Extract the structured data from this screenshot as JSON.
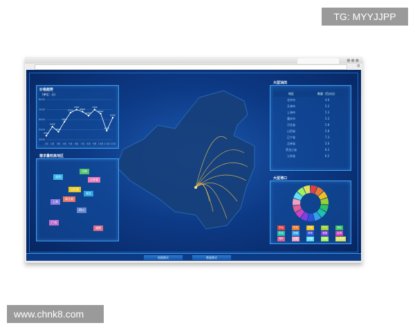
{
  "watermarks": {
    "top": "TG: MYYJJPP",
    "bottom": "www.chnk8.com"
  },
  "colors": {
    "background": "#0d3a86",
    "panel_border": "#3fa0ee",
    "line": "#ffffff",
    "flow_lines": "#f2c14e"
  },
  "panels": {
    "trend": {
      "title": "价格趋势",
      "unit": "(单位：元)"
    },
    "demand": {
      "title": "需求量较高地区",
      "tags": [
        {
          "label": "北京",
          "color": "#3fb8e8"
        },
        {
          "label": "河南",
          "color": "#4fbf6a"
        },
        {
          "label": "江苏省",
          "color": "#e87ab8"
        },
        {
          "label": "山东省",
          "color": "#e8c820"
        },
        {
          "label": "湖北",
          "color": "#2aa4e0"
        },
        {
          "label": "浙江省",
          "color": "#e8786a"
        },
        {
          "label": "上海",
          "color": "#8a7ae0"
        },
        {
          "label": "四川",
          "color": "#6a8ad0"
        },
        {
          "label": "广州",
          "color": "#c070d0"
        },
        {
          "label": "福建",
          "color": "#e06a8a"
        }
      ]
    },
    "table": {
      "title": "大型油田",
      "headers": [
        "地区",
        "数量（百分比）"
      ],
      "rows": [
        [
          "北京市",
          "4.6"
        ],
        [
          "天津市",
          "5.2"
        ],
        [
          "上海市",
          "5.3"
        ],
        [
          "重庆市",
          "5.3"
        ],
        [
          "河北省",
          "5.8"
        ],
        [
          "山西省",
          "5.8"
        ],
        [
          "辽宁省",
          "7.3"
        ],
        [
          "吉林省",
          "5.6"
        ],
        [
          "黑龙江省",
          "6.2"
        ],
        [
          "江苏省",
          "6.2"
        ]
      ]
    },
    "donut": {
      "title": "大型港口",
      "legend": [
        "华北",
        "华东",
        "华南",
        "华中",
        "西北",
        "东北",
        "西南",
        "其他",
        "港澳",
        "台湾",
        "海外",
        "北部",
        "中部",
        "东部",
        "大洋洲"
      ],
      "colors": [
        "#e04040",
        "#e87a30",
        "#f0c020",
        "#9ad030",
        "#30c060",
        "#20c0b0",
        "#30a0e8",
        "#3050e0",
        "#8040e0",
        "#d040c0",
        "#e06090",
        "#f0a0c0",
        "#60e0f0",
        "#a0f060",
        "#e0e060"
      ]
    }
  },
  "chart_data": {
    "type": "line",
    "title": "价格趋势",
    "ylabel": "(单位：元)",
    "categories": [
      "1月",
      "2月",
      "3月",
      "4月",
      "5月",
      "6月",
      "7月",
      "8月",
      "9月",
      "10月",
      "11月",
      "12月"
    ],
    "values": [
      4400,
      5300,
      4800,
      5800,
      6700,
      7000,
      6800,
      6400,
      7000,
      6600,
      4900,
      6200
    ],
    "yticks": [
      4000,
      5000,
      6000,
      7000,
      8000
    ],
    "ylim": [
      4000,
      8000
    ],
    "grid": true
  },
  "bottom_bar": {
    "buttons": [
      "地图模式",
      "数据模式"
    ]
  }
}
